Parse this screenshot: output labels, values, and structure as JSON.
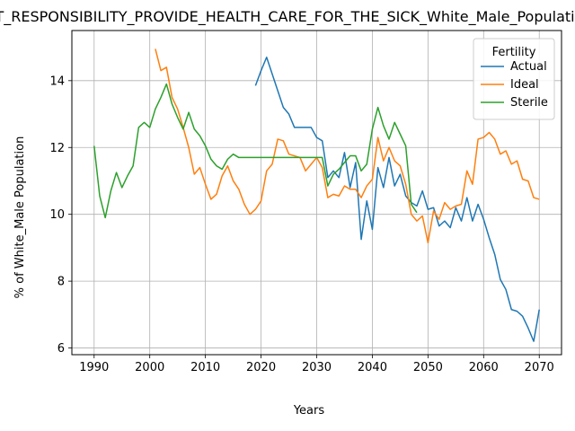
{
  "chart_data": {
    "type": "line",
    "title": "NT_RESPONSIBILITY_PROVIDE_HEALTH_CARE_FOR_THE_SICK_White_Male_Population",
    "xlabel": "Years",
    "ylabel": "% of White_Male Population",
    "xlim": [
      1986,
      2074
    ],
    "ylim": [
      5.8,
      15.5
    ],
    "xticks": [
      1990,
      2000,
      2010,
      2020,
      2030,
      2040,
      2050,
      2060,
      2070
    ],
    "yticks": [
      6,
      8,
      10,
      12,
      14
    ],
    "grid": true,
    "legend": {
      "title": "Fertility",
      "placement": "top-right"
    },
    "series": [
      {
        "name": "Actual",
        "color": "#1f77b4",
        "points": [
          [
            2019,
            13.85
          ],
          [
            2020,
            14.3
          ],
          [
            2021,
            14.7
          ],
          [
            2022,
            14.2
          ],
          [
            2023,
            13.7
          ],
          [
            2024,
            13.2
          ],
          [
            2025,
            13.0
          ],
          [
            2026,
            12.6
          ],
          [
            2027,
            12.6
          ],
          [
            2028,
            12.6
          ],
          [
            2029,
            12.6
          ],
          [
            2030,
            12.3
          ],
          [
            2031,
            12.2
          ],
          [
            2032,
            11.1
          ],
          [
            2033,
            11.3
          ],
          [
            2034,
            11.1
          ],
          [
            2035,
            11.85
          ],
          [
            2036,
            10.8
          ],
          [
            2037,
            11.55
          ],
          [
            2038,
            9.25
          ],
          [
            2039,
            10.4
          ],
          [
            2040,
            9.55
          ],
          [
            2041,
            11.4
          ],
          [
            2042,
            10.8
          ],
          [
            2043,
            11.7
          ],
          [
            2044,
            10.85
          ],
          [
            2045,
            11.2
          ],
          [
            2046,
            10.55
          ],
          [
            2047,
            10.35
          ],
          [
            2048,
            10.25
          ],
          [
            2049,
            10.7
          ],
          [
            2050,
            10.15
          ],
          [
            2051,
            10.2
          ],
          [
            2052,
            9.65
          ],
          [
            2053,
            9.8
          ],
          [
            2054,
            9.6
          ],
          [
            2055,
            10.2
          ],
          [
            2056,
            9.8
          ],
          [
            2057,
            10.5
          ],
          [
            2058,
            9.8
          ],
          [
            2059,
            10.3
          ],
          [
            2060,
            9.85
          ],
          [
            2061,
            9.3
          ],
          [
            2062,
            8.8
          ],
          [
            2063,
            8.05
          ],
          [
            2064,
            7.75
          ],
          [
            2065,
            7.15
          ],
          [
            2066,
            7.1
          ],
          [
            2067,
            6.95
          ],
          [
            2068,
            6.6
          ],
          [
            2069,
            6.2
          ],
          [
            2070,
            7.15
          ]
        ]
      },
      {
        "name": "Ideal",
        "color": "#ff7f0e",
        "points": [
          [
            2001,
            14.95
          ],
          [
            2002,
            14.3
          ],
          [
            2003,
            14.4
          ],
          [
            2004,
            13.5
          ],
          [
            2005,
            13.15
          ],
          [
            2006,
            12.6
          ],
          [
            2007,
            12.0
          ],
          [
            2008,
            11.2
          ],
          [
            2009,
            11.4
          ],
          [
            2010,
            10.9
          ],
          [
            2011,
            10.45
          ],
          [
            2012,
            10.6
          ],
          [
            2013,
            11.15
          ],
          [
            2014,
            11.45
          ],
          [
            2015,
            11.0
          ],
          [
            2016,
            10.75
          ],
          [
            2017,
            10.3
          ],
          [
            2018,
            10.0
          ],
          [
            2019,
            10.15
          ],
          [
            2020,
            10.4
          ],
          [
            2021,
            11.3
          ],
          [
            2022,
            11.5
          ],
          [
            2023,
            12.25
          ],
          [
            2024,
            12.2
          ],
          [
            2025,
            11.8
          ],
          [
            2026,
            11.75
          ],
          [
            2027,
            11.7
          ],
          [
            2028,
            11.3
          ],
          [
            2029,
            11.5
          ],
          [
            2030,
            11.7
          ],
          [
            2031,
            11.4
          ],
          [
            2032,
            10.5
          ],
          [
            2033,
            10.6
          ],
          [
            2034,
            10.55
          ],
          [
            2035,
            10.85
          ],
          [
            2036,
            10.75
          ],
          [
            2037,
            10.75
          ],
          [
            2038,
            10.5
          ],
          [
            2039,
            10.85
          ],
          [
            2040,
            11.05
          ],
          [
            2041,
            12.3
          ],
          [
            2042,
            11.6
          ],
          [
            2043,
            12.0
          ],
          [
            2044,
            11.6
          ],
          [
            2045,
            11.45
          ],
          [
            2046,
            10.9
          ],
          [
            2047,
            10.0
          ],
          [
            2048,
            9.8
          ],
          [
            2049,
            9.95
          ],
          [
            2050,
            9.15
          ],
          [
            2051,
            10.1
          ],
          [
            2052,
            9.85
          ],
          [
            2053,
            10.35
          ],
          [
            2054,
            10.15
          ],
          [
            2055,
            10.25
          ],
          [
            2056,
            10.3
          ],
          [
            2057,
            11.3
          ],
          [
            2058,
            10.9
          ],
          [
            2059,
            12.25
          ],
          [
            2060,
            12.3
          ],
          [
            2061,
            12.45
          ],
          [
            2062,
            12.25
          ],
          [
            2063,
            11.8
          ],
          [
            2064,
            11.9
          ],
          [
            2065,
            11.5
          ],
          [
            2066,
            11.6
          ],
          [
            2067,
            11.05
          ],
          [
            2068,
            11.0
          ],
          [
            2069,
            10.5
          ],
          [
            2070,
            10.45
          ]
        ]
      },
      {
        "name": "Sterile",
        "color": "#2ca02c",
        "points": [
          [
            1990,
            12.05
          ],
          [
            1991,
            10.55
          ],
          [
            1992,
            9.9
          ],
          [
            1993,
            10.7
          ],
          [
            1994,
            11.25
          ],
          [
            1995,
            10.8
          ],
          [
            1996,
            11.15
          ],
          [
            1997,
            11.45
          ],
          [
            1998,
            12.6
          ],
          [
            1999,
            12.75
          ],
          [
            2000,
            12.6
          ],
          [
            2001,
            13.15
          ],
          [
            2002,
            13.5
          ],
          [
            2003,
            13.9
          ],
          [
            2004,
            13.3
          ],
          [
            2005,
            12.9
          ],
          [
            2006,
            12.55
          ],
          [
            2007,
            13.05
          ],
          [
            2008,
            12.55
          ],
          [
            2009,
            12.35
          ],
          [
            2010,
            12.05
          ],
          [
            2011,
            11.65
          ],
          [
            2012,
            11.45
          ],
          [
            2013,
            11.35
          ],
          [
            2014,
            11.65
          ],
          [
            2015,
            11.8
          ],
          [
            2016,
            11.7
          ],
          [
            2017,
            11.7
          ],
          [
            2018,
            11.7
          ],
          [
            2019,
            11.7
          ],
          [
            2020,
            11.7
          ],
          [
            2021,
            11.7
          ],
          [
            2022,
            11.7
          ],
          [
            2023,
            11.7
          ],
          [
            2024,
            11.7
          ],
          [
            2025,
            11.7
          ],
          [
            2026,
            11.7
          ],
          [
            2027,
            11.7
          ],
          [
            2028,
            11.7
          ],
          [
            2029,
            11.7
          ],
          [
            2030,
            11.7
          ],
          [
            2031,
            11.7
          ],
          [
            2032,
            10.85
          ],
          [
            2033,
            11.2
          ],
          [
            2034,
            11.35
          ],
          [
            2035,
            11.55
          ],
          [
            2036,
            11.75
          ],
          [
            2037,
            11.75
          ],
          [
            2038,
            11.3
          ],
          [
            2039,
            11.5
          ],
          [
            2040,
            12.55
          ],
          [
            2041,
            13.2
          ],
          [
            2042,
            12.65
          ],
          [
            2043,
            12.25
          ],
          [
            2044,
            12.75
          ],
          [
            2045,
            12.4
          ],
          [
            2046,
            12.05
          ],
          [
            2047,
            10.3
          ],
          [
            2048,
            10.05
          ]
        ]
      }
    ]
  }
}
